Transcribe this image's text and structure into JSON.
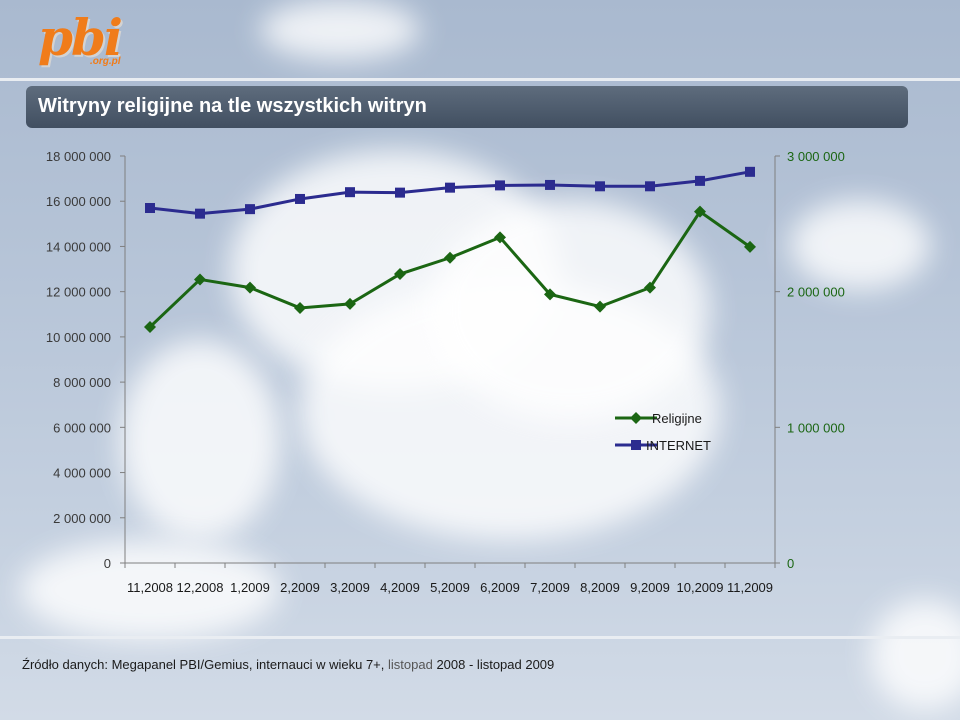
{
  "logo": {
    "main": "pbi",
    "sub": ".org.pl"
  },
  "title": "Witryny religijne na tle wszystkich witryn",
  "source": {
    "prefix": "Źródło danych: Megapanel PBI/Gemius, internauci w wieku 7+,",
    "period_word": "listopad",
    "suffix": "2008 - listopad 2009"
  },
  "colors": {
    "internet": "#2b2b8f",
    "religijne": "#1b6613",
    "left_axis_text": "#3a3a3a",
    "right_axis_text": "#1b6613"
  },
  "chart_data": {
    "type": "line",
    "categories": [
      "11,2008",
      "12,2008",
      "1,2009",
      "2,2009",
      "3,2009",
      "4,2009",
      "5,2009",
      "6,2009",
      "7,2009",
      "8,2009",
      "9,2009",
      "10,2009",
      "11,2009"
    ],
    "left_axis": {
      "min": 0,
      "max": 18000000,
      "ticks": [
        0,
        2000000,
        4000000,
        6000000,
        8000000,
        10000000,
        12000000,
        14000000,
        16000000,
        18000000
      ],
      "tick_labels": [
        "0",
        "2 000 000",
        "4 000 000",
        "6 000 000",
        "8 000 000",
        "10 000 000",
        "12 000 000",
        "14 000 000",
        "16 000 000",
        "18 000 000"
      ]
    },
    "right_axis": {
      "min": 0,
      "max": 3000000,
      "ticks": [
        0,
        1000000,
        2000000,
        3000000
      ],
      "tick_labels": [
        "0",
        "1 000 000",
        "2 000 000",
        "3 000 000"
      ]
    },
    "series": [
      {
        "name": "Religijne",
        "axis": "right",
        "marker": "diamond",
        "values": [
          1740000,
          2090000,
          2030000,
          1880000,
          1910000,
          2130000,
          2250000,
          2400000,
          1980000,
          1890000,
          2030000,
          2590000,
          2330000
        ]
      },
      {
        "name": "INTERNET",
        "axis": "left",
        "marker": "square",
        "values": [
          15700000,
          15450000,
          15650000,
          16100000,
          16400000,
          16380000,
          16600000,
          16700000,
          16720000,
          16660000,
          16660000,
          16900000,
          17300000
        ]
      }
    ],
    "legend_position": "right-middle",
    "grid": false
  }
}
